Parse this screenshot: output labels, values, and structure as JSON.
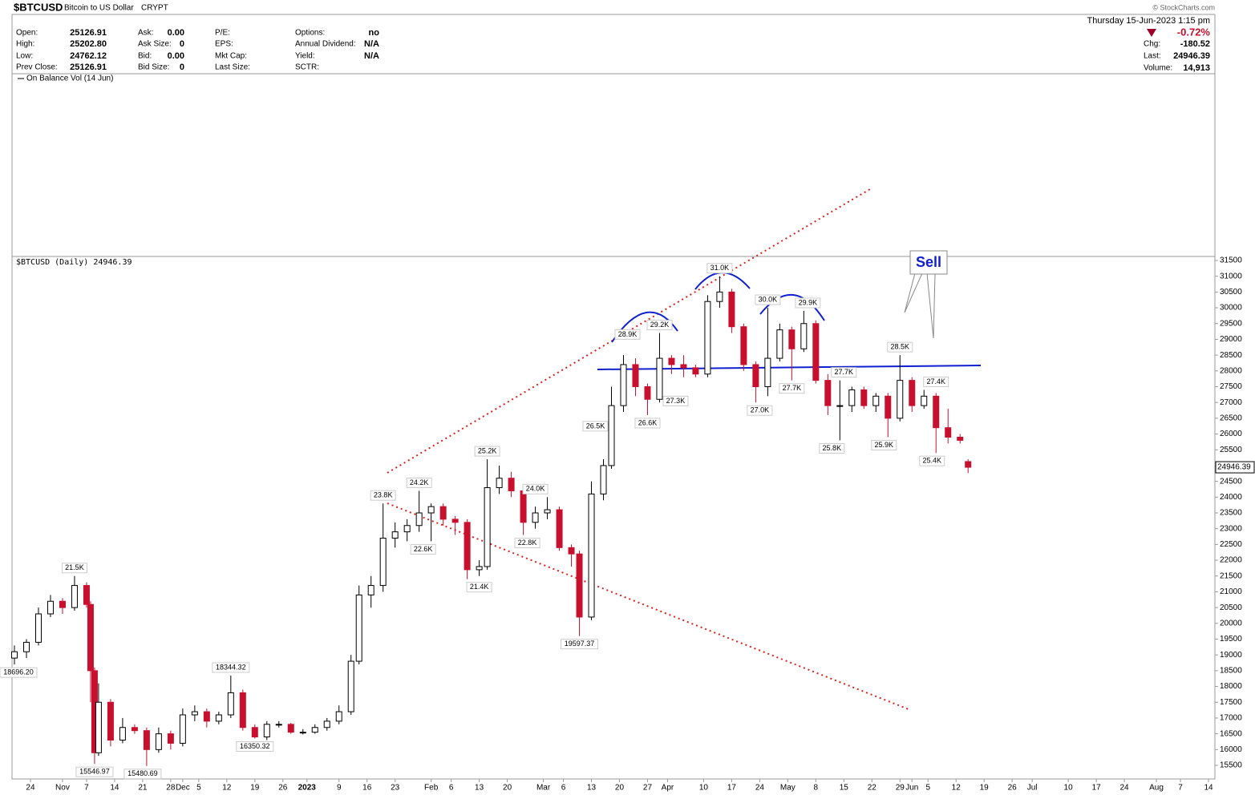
{
  "header": {
    "symbol": "$BTCUSD",
    "name": "Bitcoin to US Dollar",
    "exchange": "CRYPT",
    "columns": [
      [
        {
          "label": "Open:",
          "value": "25126.91"
        },
        {
          "label": "High:",
          "value": "25202.80"
        },
        {
          "label": "Low:",
          "value": "24762.12"
        },
        {
          "label": "Prev Close:",
          "value": "25126.91"
        }
      ],
      [
        {
          "label": "Ask:",
          "value": "0.00"
        },
        {
          "label": "Ask Size:",
          "value": "0"
        },
        {
          "label": "Bid:",
          "value": "0.00"
        },
        {
          "label": "Bid Size:",
          "value": "0"
        }
      ],
      [
        {
          "label": "P/E:",
          "value": ""
        },
        {
          "label": "EPS:",
          "value": ""
        },
        {
          "label": "Mkt Cap:",
          "value": ""
        },
        {
          "label": "Last Size:",
          "value": ""
        }
      ],
      [
        {
          "label": "Options:",
          "value": "no"
        },
        {
          "label": "Annual Dividend:",
          "value": "N/A"
        },
        {
          "label": "Yield:",
          "value": "N/A"
        },
        {
          "label": "SCTR:",
          "value": ""
        }
      ]
    ],
    "copyright": "© StockCharts.com",
    "date": "Thursday  15-Jun-2023 1:15 pm",
    "change_pct": "-0.72%",
    "right": [
      {
        "label": "Chg:",
        "value": "-180.52"
      },
      {
        "label": "Last:",
        "value": "24946.39"
      },
      {
        "label": "Volume:",
        "value": "14,913"
      }
    ],
    "obv_label": "On Balance Vol (14 Jun)",
    "price_label": "$BTCUSD (Daily) 24946.39",
    "sell_label": "Sell"
  },
  "chart_data": {
    "type": "candlestick",
    "up_color": "#ffffff",
    "down_color": "#c8102e",
    "x": [
      "2022-10-20",
      "2022-10-23",
      "2022-10-26",
      "2022-10-29",
      "2022-11-01",
      "2022-11-04",
      "2022-11-07",
      "2022-11-08",
      "2022-11-09",
      "2022-11-10",
      "2022-11-13",
      "2022-11-16",
      "2022-11-19",
      "2022-11-22",
      "2022-11-25",
      "2022-11-28",
      "2022-12-01",
      "2022-12-04",
      "2022-12-07",
      "2022-12-10",
      "2022-12-13",
      "2022-12-16",
      "2022-12-19",
      "2022-12-22",
      "2022-12-25",
      "2022-12-28",
      "2022-12-31",
      "2023-01-03",
      "2023-01-06",
      "2023-01-09",
      "2023-01-12",
      "2023-01-14",
      "2023-01-17",
      "2023-01-20",
      "2023-01-23",
      "2023-01-26",
      "2023-01-29",
      "2023-02-01",
      "2023-02-04",
      "2023-02-07",
      "2023-02-10",
      "2023-02-13",
      "2023-02-15",
      "2023-02-18",
      "2023-02-21",
      "2023-02-24",
      "2023-02-27",
      "2023-03-02",
      "2023-03-05",
      "2023-03-08",
      "2023-03-10",
      "2023-03-13",
      "2023-03-16",
      "2023-03-18",
      "2023-03-21",
      "2023-03-24",
      "2023-03-27",
      "2023-03-30",
      "2023-04-02",
      "2023-04-05",
      "2023-04-08",
      "2023-04-11",
      "2023-04-14",
      "2023-04-17",
      "2023-04-20",
      "2023-04-23",
      "2023-04-26",
      "2023-04-29",
      "2023-05-02",
      "2023-05-05",
      "2023-05-08",
      "2023-05-11",
      "2023-05-14",
      "2023-05-17",
      "2023-05-20",
      "2023-05-23",
      "2023-05-26",
      "2023-05-29",
      "2023-06-01",
      "2023-06-04",
      "2023-06-07",
      "2023-06-10",
      "2023-06-13",
      "2023-06-15"
    ],
    "open": [
      18900,
      19100,
      19400,
      20300,
      20700,
      20500,
      21200,
      20600,
      18500,
      15900,
      17500,
      16300,
      16700,
      16600,
      16000,
      16500,
      16200,
      17100,
      17200,
      16900,
      17100,
      17800,
      16700,
      16400,
      16800,
      16800,
      16550,
      16550,
      16700,
      16900,
      17200,
      18800,
      20900,
      21200,
      22700,
      22900,
      23100,
      23500,
      23700,
      23300,
      23200,
      21700,
      21800,
      24300,
      24600,
      24200,
      23200,
      23500,
      23600,
      22400,
      22200,
      20200,
      24100,
      25000,
      26900,
      28200,
      27500,
      27100,
      28400,
      28200,
      28100,
      27900,
      30200,
      30500,
      29400,
      28200,
      27500,
      28400,
      29300,
      28700,
      29500,
      27700,
      26900,
      26900,
      27400,
      26900,
      27200,
      26500,
      27700,
      26900,
      27200,
      26200,
      25900,
      25126.91
    ],
    "high": [
      19300,
      19500,
      20500,
      20900,
      20800,
      21500,
      21300,
      20700,
      18600,
      18100,
      17600,
      17000,
      16800,
      16700,
      16700,
      16600,
      17300,
      17400,
      17300,
      17200,
      18344.32,
      17900,
      16800,
      16900,
      16900,
      16850,
      16650,
      16800,
      17000,
      17400,
      19000,
      21200,
      21500,
      23800,
      23200,
      23300,
      24200,
      23800,
      23800,
      23400,
      23300,
      22000,
      25200,
      25000,
      24800,
      24300,
      23700,
      24000,
      23700,
      22500,
      22300,
      24500,
      25200,
      27500,
      28500,
      28400,
      27600,
      29200,
      28500,
      28500,
      28200,
      30400,
      31000,
      30600,
      29500,
      28300,
      30000,
      29500,
      29400,
      29900,
      29600,
      27900,
      27700,
      27500,
      27500,
      27300,
      27300,
      28500,
      27800,
      27400,
      27300,
      26800,
      26000,
      25202.8
    ],
    "low": [
      18696.2,
      18900,
      19300,
      20200,
      20300,
      20400,
      20500,
      17500,
      15546.97,
      15800,
      16100,
      16200,
      16500,
      15480.69,
      15900,
      16000,
      16100,
      16900,
      16700,
      16800,
      17000,
      16600,
      16350.32,
      16300,
      16700,
      16500,
      16480,
      16500,
      16600,
      16800,
      17100,
      18700,
      20500,
      21000,
      22400,
      22600,
      22900,
      22600,
      23100,
      22800,
      21400,
      21500,
      21700,
      24100,
      24000,
      22800,
      23000,
      23300,
      22300,
      21800,
      19597.37,
      20100,
      23900,
      24900,
      26700,
      27200,
      26600,
      27000,
      27900,
      27800,
      27800,
      27800,
      30000,
      29200,
      28000,
      27000,
      27200,
      28300,
      27700,
      28600,
      27600,
      26600,
      25800,
      26700,
      26800,
      26700,
      25900,
      26400,
      26700,
      26800,
      25400,
      25700,
      25700,
      24762.12
    ],
    "close": [
      19100,
      19400,
      20300,
      20700,
      20500,
      21200,
      20600,
      18500,
      15900,
      17500,
      16300,
      16700,
      16600,
      16000,
      16500,
      16200,
      17100,
      17200,
      16900,
      17100,
      17800,
      16700,
      16400,
      16800,
      16800,
      16550,
      16550,
      16700,
      16900,
      17200,
      18800,
      20900,
      21200,
      22700,
      22900,
      23100,
      23500,
      23700,
      23300,
      23200,
      21700,
      21800,
      24300,
      24600,
      24200,
      23200,
      23500,
      23600,
      22400,
      22200,
      20200,
      24100,
      25000,
      26900,
      28200,
      27500,
      27100,
      28400,
      28200,
      28100,
      27900,
      30200,
      30500,
      29400,
      28200,
      27500,
      28400,
      29300,
      28700,
      29500,
      27700,
      26900,
      26900,
      27400,
      26900,
      27200,
      26500,
      27700,
      26900,
      27200,
      26200,
      25900,
      25800,
      24946.39
    ],
    "ylim": [
      15200,
      31800
    ],
    "yticks": [
      15500,
      16000,
      16500,
      17000,
      17500,
      18000,
      18500,
      19000,
      19500,
      20000,
      20500,
      21000,
      21500,
      22000,
      22500,
      23000,
      23500,
      24000,
      24500,
      25000,
      25500,
      26000,
      26500,
      27000,
      27500,
      28000,
      28500,
      29000,
      29500,
      30000,
      30500,
      31000,
      31500
    ],
    "xlim": [
      "2022-10-20",
      "2023-08-16"
    ],
    "xticks": [
      {
        "value": "2022-10-24",
        "label": "24"
      },
      {
        "value": "2022-11-01",
        "label": "Nov"
      },
      {
        "value": "2022-11-07",
        "label": "7"
      },
      {
        "value": "2022-11-14",
        "label": "14"
      },
      {
        "value": "2022-11-21",
        "label": "21"
      },
      {
        "value": "2022-11-28",
        "label": "28"
      },
      {
        "value": "2022-12-01",
        "label": "Dec"
      },
      {
        "value": "2022-12-05",
        "label": "5"
      },
      {
        "value": "2022-12-12",
        "label": "12"
      },
      {
        "value": "2022-12-19",
        "label": "19"
      },
      {
        "value": "2022-12-26",
        "label": "26"
      },
      {
        "value": "2023-01-01",
        "label": "2023"
      },
      {
        "value": "2023-01-09",
        "label": "9"
      },
      {
        "value": "2023-01-16",
        "label": "16"
      },
      {
        "value": "2023-01-23",
        "label": "23"
      },
      {
        "value": "2023-02-01",
        "label": "Feb"
      },
      {
        "value": "2023-02-06",
        "label": "6"
      },
      {
        "value": "2023-02-13",
        "label": "13"
      },
      {
        "value": "2023-02-20",
        "label": "20"
      },
      {
        "value": "2023-03-01",
        "label": "Mar"
      },
      {
        "value": "2023-03-06",
        "label": "6"
      },
      {
        "value": "2023-03-13",
        "label": "13"
      },
      {
        "value": "2023-03-20",
        "label": "20"
      },
      {
        "value": "2023-03-27",
        "label": "27"
      },
      {
        "value": "2023-04-01",
        "label": "Apr"
      },
      {
        "value": "2023-04-10",
        "label": "10"
      },
      {
        "value": "2023-04-17",
        "label": "17"
      },
      {
        "value": "2023-04-24",
        "label": "24"
      },
      {
        "value": "2023-05-01",
        "label": "May"
      },
      {
        "value": "2023-05-08",
        "label": "8"
      },
      {
        "value": "2023-05-15",
        "label": "15"
      },
      {
        "value": "2023-05-22",
        "label": "22"
      },
      {
        "value": "2023-05-29",
        "label": "29"
      },
      {
        "value": "2023-06-01",
        "label": "Jun"
      },
      {
        "value": "2023-06-05",
        "label": "5"
      },
      {
        "value": "2023-06-12",
        "label": "12"
      },
      {
        "value": "2023-06-19",
        "label": "19"
      },
      {
        "value": "2023-06-26",
        "label": "26"
      },
      {
        "value": "2023-07-01",
        "label": "Jul"
      },
      {
        "value": "2023-07-10",
        "label": "10"
      },
      {
        "value": "2023-07-17",
        "label": "17"
      },
      {
        "value": "2023-07-24",
        "label": "24"
      },
      {
        "value": "2023-08-01",
        "label": "Aug"
      },
      {
        "value": "2023-08-07",
        "label": "7"
      },
      {
        "value": "2023-08-14",
        "label": "14"
      }
    ],
    "peak_labels": [
      {
        "x": "2022-11-04",
        "value": 21500,
        "label": "21.5K"
      },
      {
        "x": "2022-12-13",
        "value": 18344.32
      },
      {
        "x": "2023-01-20",
        "value": 23800,
        "label": "23.8K"
      },
      {
        "x": "2023-01-29",
        "value": 24200,
        "label": "24.2K"
      },
      {
        "x": "2023-02-15",
        "value": 25200,
        "label": "25.2K"
      },
      {
        "x": "2023-02-27",
        "value": 24000,
        "label": "24.0K"
      },
      {
        "x": "2023-03-22",
        "value": 28900,
        "label": "28.9K"
      },
      {
        "x": "2023-03-30",
        "value": 29200,
        "label": "29.2K"
      },
      {
        "x": "2023-04-14",
        "value": 31000,
        "label": "31.0K"
      },
      {
        "x": "2023-04-26",
        "value": 30000,
        "label": "30.0K"
      },
      {
        "x": "2023-05-06",
        "value": 29900,
        "label": "29.9K"
      },
      {
        "x": "2023-05-15",
        "value": 27700,
        "label": "27.7K"
      },
      {
        "x": "2023-05-29",
        "value": 28500,
        "label": "28.5K"
      },
      {
        "x": "2023-06-07",
        "value": 27400,
        "label": "27.4K"
      }
    ],
    "trough_labels": [
      {
        "x": "2022-10-21",
        "value": 18696.2,
        "label": "18696.20"
      },
      {
        "x": "2022-11-09",
        "value": 15546.97
      },
      {
        "x": "2022-11-21",
        "value": 15480.69
      },
      {
        "x": "2022-12-19",
        "value": 16350.32
      },
      {
        "x": "2023-01-30",
        "value": 22600,
        "label": "22.6K"
      },
      {
        "x": "2023-02-13",
        "value": 21400,
        "label": "21.4K"
      },
      {
        "x": "2023-02-25",
        "value": 22800,
        "label": "22.8K"
      },
      {
        "x": "2023-03-10",
        "value": 19597.37
      },
      {
        "x": "2023-03-14",
        "value": 26500,
        "label": "26.5K"
      },
      {
        "x": "2023-03-27",
        "value": 26600,
        "label": "26.6K"
      },
      {
        "x": "2023-04-03",
        "value": 27300,
        "label": "27.3K"
      },
      {
        "x": "2023-04-24",
        "value": 27000,
        "label": "27.0K"
      },
      {
        "x": "2023-05-02",
        "value": 27700,
        "label": "27.7K"
      },
      {
        "x": "2023-05-12",
        "value": 25800,
        "label": "25.8K"
      },
      {
        "x": "2023-05-25",
        "value": 25900,
        "label": "25.9K"
      },
      {
        "x": "2023-06-06",
        "value": 25400,
        "label": "25.4K"
      }
    ]
  }
}
